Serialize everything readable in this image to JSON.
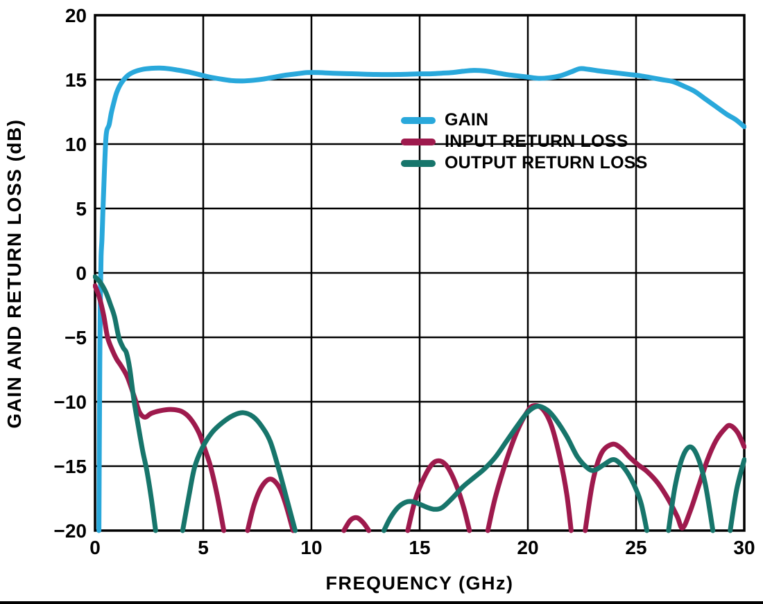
{
  "chart_data": {
    "type": "line",
    "title": "",
    "xlabel": "FREQUENCY (GHz)",
    "ylabel": "GAIN AND RETURN LOSS (dB)",
    "xlim": [
      0,
      30
    ],
    "ylim": [
      -20,
      20
    ],
    "xticks": [
      0,
      5,
      10,
      15,
      20,
      25,
      30
    ],
    "yticks": [
      20,
      15,
      10,
      5,
      0,
      -5,
      -10,
      -15,
      -20
    ],
    "grid": true,
    "legend_position": "inside-upper-middle",
    "axis_color": "#000000",
    "series": [
      {
        "name": "GAIN",
        "color": "#29A8DB",
        "points": [
          [
            0.18,
            -20
          ],
          [
            0.2,
            -13
          ],
          [
            0.22,
            -7
          ],
          [
            0.25,
            -1.5
          ],
          [
            0.28,
            1.3
          ],
          [
            0.32,
            2.6
          ],
          [
            0.36,
            4.6
          ],
          [
            0.4,
            6.4
          ],
          [
            0.45,
            8.6
          ],
          [
            0.5,
            10.4
          ],
          [
            0.55,
            11.1
          ],
          [
            0.65,
            11.5
          ],
          [
            0.75,
            12.4
          ],
          [
            0.85,
            13.1
          ],
          [
            1.0,
            14.0
          ],
          [
            1.2,
            14.7
          ],
          [
            1.5,
            15.3
          ],
          [
            1.8,
            15.6
          ],
          [
            2.2,
            15.8
          ],
          [
            2.6,
            15.88
          ],
          [
            3.0,
            15.9
          ],
          [
            3.4,
            15.85
          ],
          [
            3.8,
            15.75
          ],
          [
            4.3,
            15.6
          ],
          [
            4.8,
            15.4
          ],
          [
            5.3,
            15.2
          ],
          [
            5.8,
            15.05
          ],
          [
            6.3,
            14.93
          ],
          [
            6.8,
            14.9
          ],
          [
            7.3,
            14.95
          ],
          [
            7.8,
            15.05
          ],
          [
            8.3,
            15.2
          ],
          [
            8.8,
            15.35
          ],
          [
            9.3,
            15.45
          ],
          [
            9.8,
            15.55
          ],
          [
            10.3,
            15.55
          ],
          [
            11,
            15.5
          ],
          [
            12,
            15.45
          ],
          [
            13,
            15.4
          ],
          [
            14,
            15.4
          ],
          [
            15,
            15.45
          ],
          [
            15.5,
            15.45
          ],
          [
            16,
            15.5
          ],
          [
            16.5,
            15.55
          ],
          [
            17,
            15.65
          ],
          [
            17.5,
            15.72
          ],
          [
            18,
            15.68
          ],
          [
            18.5,
            15.55
          ],
          [
            19,
            15.4
          ],
          [
            19.5,
            15.3
          ],
          [
            20,
            15.2
          ],
          [
            20.5,
            15.1
          ],
          [
            21,
            15.15
          ],
          [
            21.5,
            15.3
          ],
          [
            22,
            15.6
          ],
          [
            22.4,
            15.85
          ],
          [
            22.8,
            15.8
          ],
          [
            23.2,
            15.7
          ],
          [
            23.7,
            15.6
          ],
          [
            24.2,
            15.5
          ],
          [
            24.7,
            15.4
          ],
          [
            25.2,
            15.3
          ],
          [
            25.7,
            15.15
          ],
          [
            26.2,
            15.0
          ],
          [
            26.7,
            14.85
          ],
          [
            27.2,
            14.5
          ],
          [
            27.7,
            14.1
          ],
          [
            28.2,
            13.5
          ],
          [
            28.7,
            12.9
          ],
          [
            29.2,
            12.3
          ],
          [
            29.6,
            11.9
          ],
          [
            30,
            11.35
          ]
        ]
      },
      {
        "name": "INPUT RETURN LOSS",
        "color": "#9E1A4D",
        "points": [
          [
            0,
            -1.0
          ],
          [
            0.2,
            -1.9
          ],
          [
            0.4,
            -3.3
          ],
          [
            0.58,
            -5.0
          ],
          [
            0.8,
            -6.0
          ],
          [
            1.0,
            -6.7
          ],
          [
            1.2,
            -7.2
          ],
          [
            1.5,
            -8.1
          ],
          [
            1.85,
            -9.8
          ],
          [
            2.05,
            -10.8
          ],
          [
            2.3,
            -11.2
          ],
          [
            2.6,
            -10.9
          ],
          [
            3.0,
            -10.7
          ],
          [
            3.5,
            -10.6
          ],
          [
            4.0,
            -10.75
          ],
          [
            4.4,
            -11.3
          ],
          [
            4.8,
            -12.4
          ],
          [
            5.1,
            -13.8
          ],
          [
            5.35,
            -15.1
          ],
          [
            5.65,
            -17.3
          ],
          [
            5.95,
            -20
          ],
          null,
          [
            7.05,
            -20
          ],
          [
            7.35,
            -18.0
          ],
          [
            7.7,
            -16.6
          ],
          [
            8.1,
            -16.0
          ],
          [
            8.5,
            -16.6
          ],
          [
            8.8,
            -17.9
          ],
          [
            9.15,
            -20
          ],
          null,
          [
            11.5,
            -20
          ],
          [
            11.8,
            -19.2
          ],
          [
            12.1,
            -19.0
          ],
          [
            12.4,
            -19.4
          ],
          [
            12.65,
            -20
          ],
          null,
          [
            14.45,
            -20
          ],
          [
            14.8,
            -17.6
          ],
          [
            15.2,
            -15.9
          ],
          [
            15.6,
            -14.8
          ],
          [
            15.95,
            -14.6
          ],
          [
            16.3,
            -15.1
          ],
          [
            16.7,
            -16.5
          ],
          [
            17.05,
            -18.3
          ],
          [
            17.3,
            -20
          ],
          null,
          [
            18.15,
            -20
          ],
          [
            18.5,
            -17.4
          ],
          [
            19,
            -14.6
          ],
          [
            19.5,
            -12.3
          ],
          [
            20,
            -10.7
          ],
          [
            20.3,
            -10.3
          ],
          [
            20.7,
            -10.6
          ],
          [
            21.1,
            -11.9
          ],
          [
            21.5,
            -14.5
          ],
          [
            21.8,
            -17.2
          ],
          [
            22,
            -20
          ],
          null,
          [
            22.65,
            -20
          ],
          [
            23,
            -16.2
          ],
          [
            23.4,
            -14.0
          ],
          [
            23.9,
            -13.3
          ],
          [
            24.3,
            -13.6
          ],
          [
            24.7,
            -14.3
          ],
          [
            25.1,
            -14.9
          ],
          [
            25.5,
            -15.4
          ],
          [
            26,
            -16.3
          ],
          [
            26.5,
            -17.6
          ],
          [
            26.9,
            -18.9
          ],
          [
            27.15,
            -19.8
          ],
          [
            27.5,
            -18.5
          ],
          [
            27.9,
            -16.5
          ],
          [
            28.3,
            -14.5
          ],
          [
            28.7,
            -13.0
          ],
          [
            29.1,
            -12.1
          ],
          [
            29.35,
            -11.85
          ],
          [
            29.7,
            -12.4
          ],
          [
            30,
            -13.5
          ]
        ]
      },
      {
        "name": "OUTPUT RETURN LOSS",
        "color": "#17756B",
        "points": [
          [
            0,
            -0.3
          ],
          [
            0.25,
            -0.75
          ],
          [
            0.5,
            -1.5
          ],
          [
            0.7,
            -2.4
          ],
          [
            0.9,
            -3.4
          ],
          [
            1.1,
            -5.0
          ],
          [
            1.3,
            -5.8
          ],
          [
            1.45,
            -6.2
          ],
          [
            1.6,
            -7.4
          ],
          [
            1.8,
            -9.9
          ],
          [
            2.0,
            -11.9
          ],
          [
            2.2,
            -13.8
          ],
          [
            2.4,
            -15.4
          ],
          [
            2.6,
            -17.5
          ],
          [
            2.8,
            -20
          ],
          null,
          [
            4.05,
            -20
          ],
          [
            4.35,
            -17.2
          ],
          [
            4.6,
            -15.1
          ],
          [
            4.95,
            -13.6
          ],
          [
            5.4,
            -12.4
          ],
          [
            5.9,
            -11.6
          ],
          [
            6.4,
            -11.05
          ],
          [
            6.85,
            -10.85
          ],
          [
            7.3,
            -11.15
          ],
          [
            7.7,
            -11.9
          ],
          [
            8.1,
            -13.1
          ],
          [
            8.5,
            -15.3
          ],
          [
            8.9,
            -17.8
          ],
          [
            9.25,
            -20
          ],
          null,
          [
            13.35,
            -20
          ],
          [
            13.65,
            -19.0
          ],
          [
            14.0,
            -18.2
          ],
          [
            14.35,
            -17.8
          ],
          [
            14.65,
            -17.75
          ],
          [
            15.0,
            -17.95
          ],
          [
            15.35,
            -18.2
          ],
          [
            15.7,
            -18.35
          ],
          [
            16.05,
            -18.2
          ],
          [
            16.5,
            -17.5
          ],
          [
            17,
            -16.6
          ],
          [
            17.5,
            -15.9
          ],
          [
            18,
            -15.2
          ],
          [
            18.5,
            -14.3
          ],
          [
            19,
            -13.1
          ],
          [
            19.5,
            -11.9
          ],
          [
            20,
            -10.8
          ],
          [
            20.45,
            -10.35
          ],
          [
            20.9,
            -10.65
          ],
          [
            21.3,
            -11.4
          ],
          [
            21.8,
            -12.7
          ],
          [
            22.3,
            -14.3
          ],
          [
            22.8,
            -15.2
          ],
          [
            23.1,
            -15.3
          ],
          [
            23.5,
            -14.9
          ],
          [
            23.9,
            -14.5
          ],
          [
            24.2,
            -14.7
          ],
          [
            24.6,
            -15.5
          ],
          [
            25.0,
            -16.8
          ],
          [
            25.25,
            -18.0
          ],
          [
            25.5,
            -20
          ],
          null,
          [
            26.5,
            -20
          ],
          [
            26.8,
            -16.6
          ],
          [
            27.15,
            -14.3
          ],
          [
            27.5,
            -13.5
          ],
          [
            27.85,
            -14.3
          ],
          [
            28.2,
            -16.4
          ],
          [
            28.55,
            -20
          ],
          null,
          [
            29.35,
            -20
          ],
          [
            29.65,
            -16.8
          ],
          [
            30,
            -14.5
          ]
        ]
      }
    ]
  }
}
